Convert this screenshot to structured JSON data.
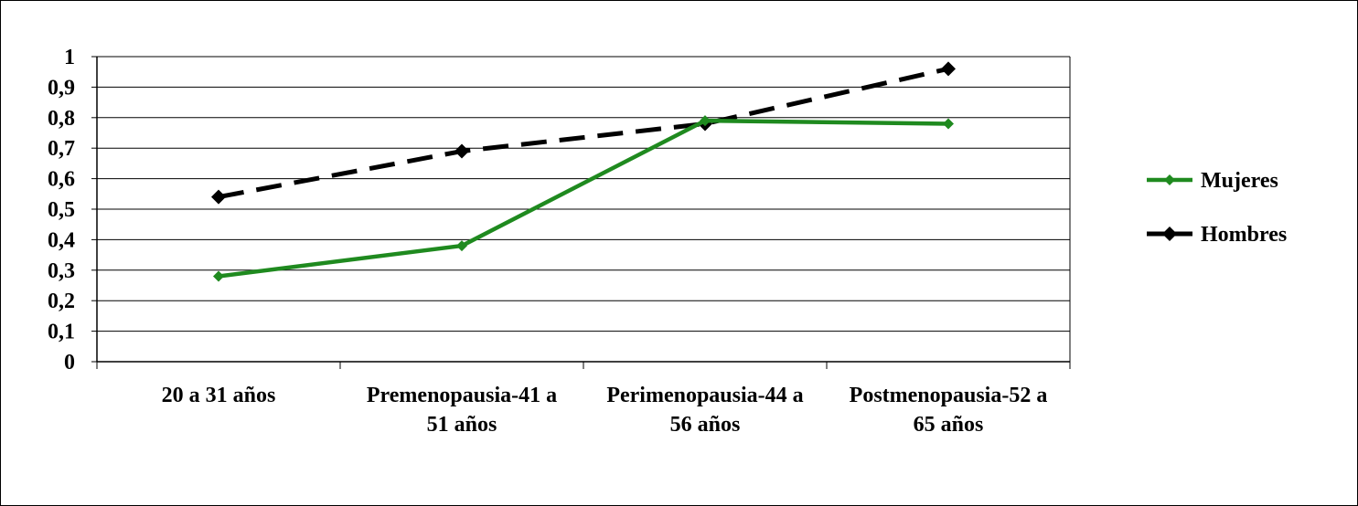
{
  "chart_data": {
    "type": "line",
    "title": "",
    "xlabel": "",
    "ylabel": "",
    "ylim": [
      0,
      1
    ],
    "yticks": [
      "0",
      "0,1",
      "0,2",
      "0,3",
      "0,4",
      "0,5",
      "0,6",
      "0,7",
      "0,8",
      "0,9",
      "1"
    ],
    "categories": [
      [
        "20 a 31 años"
      ],
      [
        "Premenopausia-41 a",
        "51 años"
      ],
      [
        "Perimenopausia-44 a",
        "56 años"
      ],
      [
        "Postmenopausia-52 a",
        "65 años"
      ]
    ],
    "series": [
      {
        "name": "Mujeres",
        "values": [
          0.28,
          0.38,
          0.79,
          0.78
        ],
        "color": "#1f8a1f",
        "style": "solid",
        "marker": "diamond"
      },
      {
        "name": "Hombres",
        "values": [
          0.54,
          0.69,
          0.78,
          0.96
        ],
        "color": "#000000",
        "style": "dashed",
        "marker": "diamond"
      }
    ],
    "grid": true,
    "legend": "right"
  }
}
